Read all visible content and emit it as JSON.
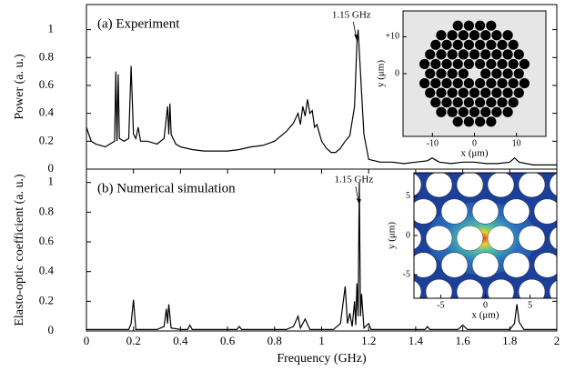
{
  "chart_data": [
    {
      "type": "line",
      "title": "(a) Experiment",
      "ylabel": "Power (a. u.)",
      "xlim": [
        0,
        2
      ],
      "ylim": [
        0,
        1.18
      ],
      "yticks": [
        0,
        0.2,
        0.4,
        0.6,
        0.8,
        1
      ],
      "annotation": {
        "text": "1.15 GHz",
        "x": 1.15,
        "y": 0.92
      },
      "series": [
        {
          "color": "#000000",
          "x": [
            0,
            0.02,
            0.04,
            0.06,
            0.08,
            0.1,
            0.12,
            0.125,
            0.13,
            0.135,
            0.14,
            0.16,
            0.18,
            0.19,
            0.2,
            0.21,
            0.22,
            0.23,
            0.26,
            0.3,
            0.33,
            0.345,
            0.35,
            0.355,
            0.36,
            0.38,
            0.4,
            0.45,
            0.5,
            0.55,
            0.6,
            0.65,
            0.7,
            0.75,
            0.8,
            0.85,
            0.88,
            0.9,
            0.91,
            0.92,
            0.93,
            0.94,
            0.95,
            0.96,
            0.97,
            0.98,
            1.0,
            1.02,
            1.04,
            1.06,
            1.08,
            1.1,
            1.12,
            1.14,
            1.15,
            1.155,
            1.16,
            1.17,
            1.18,
            1.2,
            1.25,
            1.3,
            1.35,
            1.4,
            1.45,
            1.47,
            1.5,
            1.55,
            1.6,
            1.65,
            1.7,
            1.75,
            1.8,
            1.82,
            1.84,
            1.9,
            1.95,
            2.0
          ],
          "values": [
            0.3,
            0.2,
            0.18,
            0.17,
            0.16,
            0.18,
            0.2,
            0.7,
            0.2,
            0.68,
            0.22,
            0.2,
            0.22,
            0.74,
            0.25,
            0.22,
            0.3,
            0.2,
            0.2,
            0.18,
            0.22,
            0.45,
            0.25,
            0.47,
            0.25,
            0.18,
            0.16,
            0.14,
            0.13,
            0.13,
            0.13,
            0.14,
            0.16,
            0.17,
            0.2,
            0.27,
            0.33,
            0.4,
            0.32,
            0.45,
            0.38,
            0.5,
            0.4,
            0.42,
            0.3,
            0.32,
            0.2,
            0.15,
            0.12,
            0.12,
            0.15,
            0.2,
            0.24,
            0.45,
            0.9,
            1.0,
            0.85,
            0.55,
            0.25,
            0.07,
            0.05,
            0.05,
            0.04,
            0.05,
            0.06,
            0.08,
            0.05,
            0.04,
            0.05,
            0.05,
            0.04,
            0.04,
            0.05,
            0.08,
            0.05,
            0.03,
            0.03,
            0.03
          ]
        }
      ],
      "inset": {
        "xlabel": "x (μm)",
        "ylabel": "y (μm)",
        "xlim": [
          -17,
          17
        ],
        "ylim": [
          -17,
          17
        ],
        "xticks": [
          -10,
          0,
          10
        ],
        "yticks": [
          {
            "value": 10,
            "label": "+10"
          },
          0
        ]
      }
    },
    {
      "type": "line",
      "title": "(b) Numerical simulation",
      "ylabel": "Elasto-optic coefficient (a. u.)",
      "xlabel": "Frequency (GHz)",
      "xlim": [
        0,
        2
      ],
      "ylim": [
        0,
        1.09
      ],
      "yticks": [
        0,
        0.2,
        0.4,
        0.6,
        0.8,
        1
      ],
      "xticks": [
        0,
        0.2,
        0.4,
        0.6,
        0.8,
        1,
        1.2,
        1.4,
        1.6,
        1.8,
        2
      ],
      "annotation": {
        "text": "1.15 GHz",
        "x": 1.16,
        "y": 0.85
      },
      "series": [
        {
          "color": "#000000",
          "x": [
            0,
            0.18,
            0.19,
            0.2,
            0.21,
            0.3,
            0.33,
            0.34,
            0.345,
            0.35,
            0.36,
            0.4,
            0.43,
            0.44,
            0.45,
            0.6,
            0.64,
            0.65,
            0.66,
            0.85,
            0.88,
            0.9,
            0.91,
            0.93,
            0.95,
            1.05,
            1.08,
            1.1,
            1.11,
            1.12,
            1.13,
            1.14,
            1.145,
            1.15,
            1.155,
            1.16,
            1.165,
            1.17,
            1.18,
            1.2,
            1.21,
            1.4,
            1.44,
            1.45,
            1.46,
            1.58,
            1.6,
            1.62,
            1.8,
            1.82,
            1.83,
            1.84,
            1.86,
            2.0
          ],
          "values": [
            0.01,
            0.01,
            0.05,
            0.21,
            0.01,
            0.01,
            0.03,
            0.15,
            0.05,
            0.18,
            0.02,
            0.01,
            0.01,
            0.04,
            0.01,
            0.01,
            0.01,
            0.03,
            0.01,
            0.01,
            0.03,
            0.1,
            0.02,
            0.08,
            0.01,
            0.01,
            0.05,
            0.3,
            0.05,
            0.12,
            0.03,
            0.2,
            0.04,
            0.32,
            0.1,
            1.0,
            0.1,
            0.25,
            0.02,
            0.05,
            0.01,
            0.01,
            0.01,
            0.03,
            0.01,
            0.01,
            0.04,
            0.01,
            0.01,
            0.05,
            0.18,
            0.06,
            0.01,
            0.01
          ]
        }
      ],
      "inset": {
        "xlabel": "x (μm)",
        "ylabel": "y (μm)",
        "xlim": [
          -8,
          8
        ],
        "ylim": [
          -8,
          8
        ],
        "xticks": [
          -5,
          0,
          5
        ],
        "yticks": [
          5,
          0,
          -5
        ]
      }
    }
  ]
}
